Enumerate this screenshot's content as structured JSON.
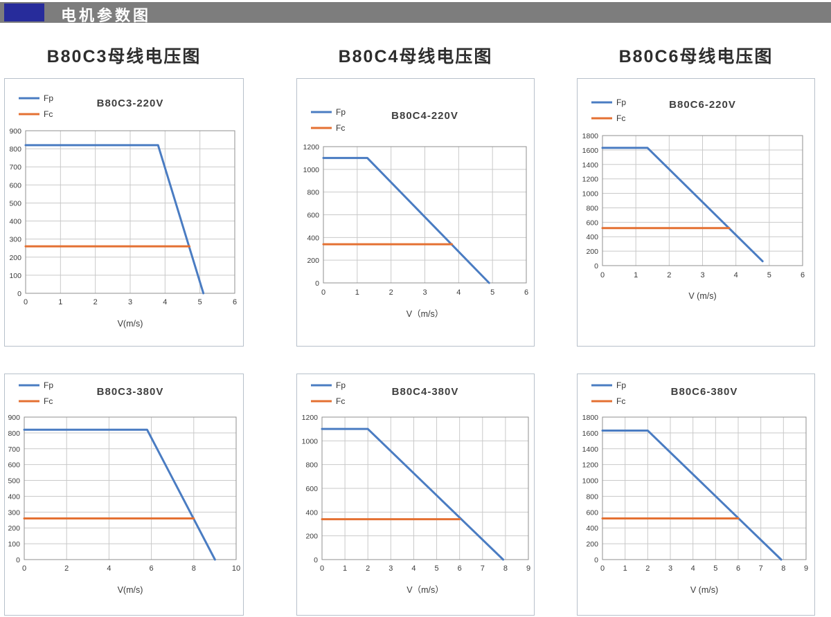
{
  "header": {
    "title": "电机参数图"
  },
  "columns": [
    {
      "heading": "B80C3母线电压图"
    },
    {
      "heading": "B80C4母线电压图"
    },
    {
      "heading": "B80C6母线电压图"
    }
  ],
  "colors": {
    "fp": "#4a7cc2",
    "fc": "#e47032",
    "header_bar": "#7d7d7d",
    "header_accent": "#272c9b",
    "grid": "#c9c9c9",
    "plot_border": "#8f8f8f",
    "text": "#3a3a3a"
  },
  "chart_data": [
    {
      "type": "line",
      "title": "B80C3-220V",
      "xlabel": "V(m/s)",
      "xlim": [
        0,
        6
      ],
      "xstep": 1,
      "ylim": [
        0,
        900
      ],
      "ystep": 100,
      "grid": true,
      "legend_position": "top-left",
      "series": [
        {
          "name": "Fp",
          "color": "#4a7cc2",
          "points": [
            [
              0,
              820
            ],
            [
              3.8,
              820
            ],
            [
              5.1,
              0
            ]
          ]
        },
        {
          "name": "Fc",
          "color": "#e47032",
          "points": [
            [
              0,
              260
            ],
            [
              4.7,
              260
            ]
          ]
        }
      ]
    },
    {
      "type": "line",
      "title": "B80C4-220V",
      "xlabel": "V（m/s）",
      "xlim": [
        0,
        6
      ],
      "xstep": 1,
      "ylim": [
        0,
        1200
      ],
      "ystep": 200,
      "grid": true,
      "legend_position": "top-left",
      "series": [
        {
          "name": "Fp",
          "color": "#4a7cc2",
          "points": [
            [
              0,
              1100
            ],
            [
              1.3,
              1100
            ],
            [
              4.9,
              0
            ]
          ]
        },
        {
          "name": "Fc",
          "color": "#e47032",
          "points": [
            [
              0,
              340
            ],
            [
              3.8,
              340
            ]
          ]
        }
      ]
    },
    {
      "type": "line",
      "title": "B80C6-220V",
      "xlabel": "V (m/s)",
      "xlim": [
        0,
        6
      ],
      "xstep": 1,
      "ylim": [
        0,
        1800
      ],
      "ystep": 200,
      "grid": true,
      "legend_position": "top-left",
      "series": [
        {
          "name": "Fp",
          "color": "#4a7cc2",
          "points": [
            [
              0,
              1630
            ],
            [
              1.35,
              1630
            ],
            [
              4.8,
              60
            ]
          ]
        },
        {
          "name": "Fc",
          "color": "#e47032",
          "points": [
            [
              0,
              520
            ],
            [
              3.8,
              520
            ]
          ]
        }
      ]
    },
    {
      "type": "line",
      "title": "B80C3-380V",
      "xlabel": "V(m/s)",
      "xlim": [
        0,
        10
      ],
      "xstep": 2,
      "ylim": [
        0,
        900
      ],
      "ystep": 100,
      "grid": true,
      "legend_position": "top-left",
      "series": [
        {
          "name": "Fp",
          "color": "#4a7cc2",
          "points": [
            [
              0,
              820
            ],
            [
              5.8,
              820
            ],
            [
              9,
              0
            ]
          ]
        },
        {
          "name": "Fc",
          "color": "#e47032",
          "points": [
            [
              0,
              260
            ],
            [
              8,
              260
            ]
          ]
        }
      ]
    },
    {
      "type": "line",
      "title": "B80C4-380V",
      "xlabel": "V（m/s）",
      "xlim": [
        0,
        9
      ],
      "xstep": 1,
      "ylim": [
        0,
        1200
      ],
      "ystep": 200,
      "grid": true,
      "legend_position": "top-left",
      "series": [
        {
          "name": "Fp",
          "color": "#4a7cc2",
          "points": [
            [
              0,
              1100
            ],
            [
              2,
              1100
            ],
            [
              7.9,
              0
            ]
          ]
        },
        {
          "name": "Fc",
          "color": "#e47032",
          "points": [
            [
              0,
              340
            ],
            [
              6,
              340
            ]
          ]
        }
      ]
    },
    {
      "type": "line",
      "title": "B80C6-380V",
      "xlabel": "V (m/s)",
      "xlim": [
        0,
        9
      ],
      "xstep": 1,
      "ylim": [
        0,
        1800
      ],
      "ystep": 200,
      "grid": true,
      "legend_position": "top-left",
      "series": [
        {
          "name": "Fp",
          "color": "#4a7cc2",
          "points": [
            [
              0,
              1630
            ],
            [
              2,
              1630
            ],
            [
              7.9,
              0
            ]
          ]
        },
        {
          "name": "Fc",
          "color": "#e47032",
          "points": [
            [
              0,
              520
            ],
            [
              6,
              520
            ]
          ]
        }
      ]
    }
  ]
}
